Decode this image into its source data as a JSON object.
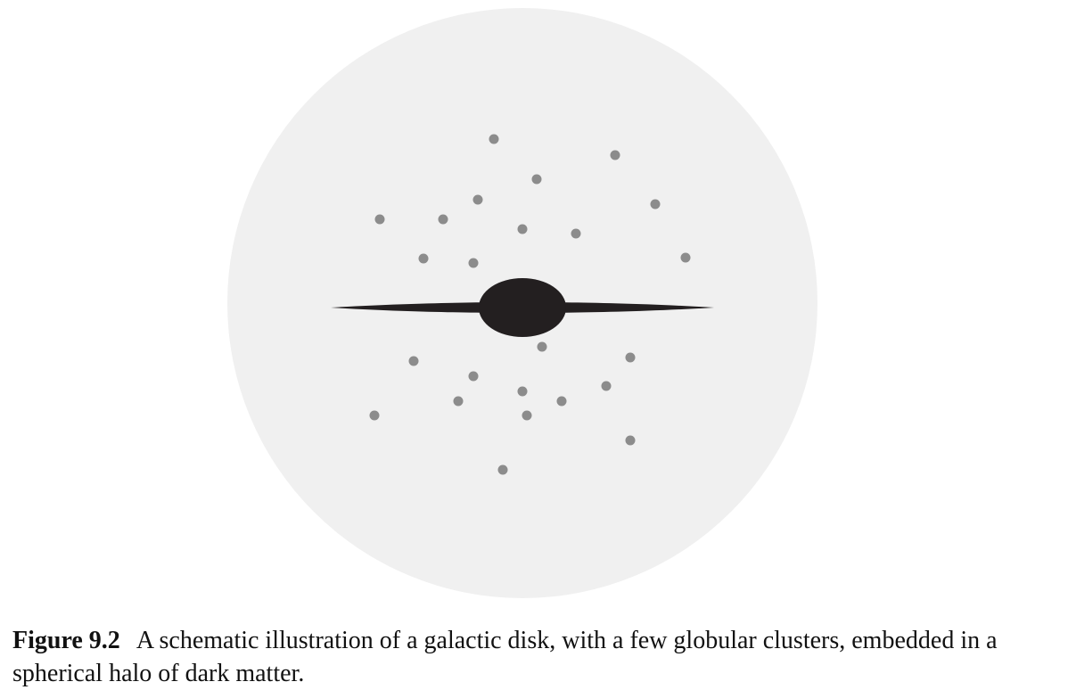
{
  "figure": {
    "colors": {
      "halo": "#f0f0f0",
      "galaxy": "#231f20",
      "cluster": "#8c8c8c"
    }
  },
  "caption": {
    "label": "Figure 9.2",
    "text": "A schematic illustration of a galactic disk, with a few globular clusters, embedded in a spherical halo of dark matter."
  }
}
